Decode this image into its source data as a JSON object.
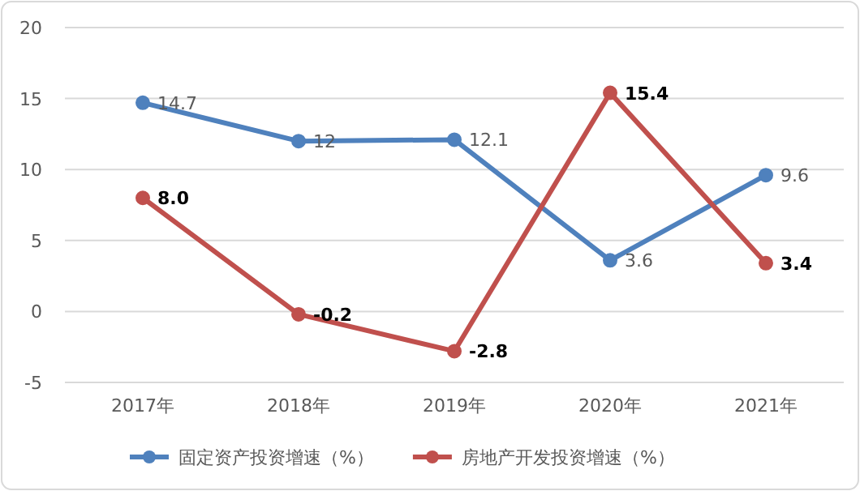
{
  "chart_data": {
    "type": "line",
    "categories": [
      "2017年",
      "2018年",
      "2019年",
      "2020年",
      "2021年"
    ],
    "series": [
      {
        "name": "固定资产投资增速（%）",
        "color": "#4f81bd",
        "values": [
          14.7,
          12,
          12.1,
          3.6,
          9.6
        ],
        "value_labels": [
          "14.7",
          "12",
          "12.1",
          "3.6",
          "9.6"
        ]
      },
      {
        "name": "房地产开发投资增速（%）",
        "color": "#c0504d",
        "values": [
          8.0,
          -0.2,
          -2.8,
          15.4,
          3.4
        ],
        "value_labels": [
          "8.0",
          "-0.2",
          "-2.8",
          "15.4",
          "3.4"
        ]
      }
    ],
    "ylim": [
      -5,
      20
    ],
    "yticks": [
      -5,
      0,
      5,
      10,
      15,
      20
    ],
    "grid": "y",
    "legend": "bottom",
    "marker": "circle"
  }
}
